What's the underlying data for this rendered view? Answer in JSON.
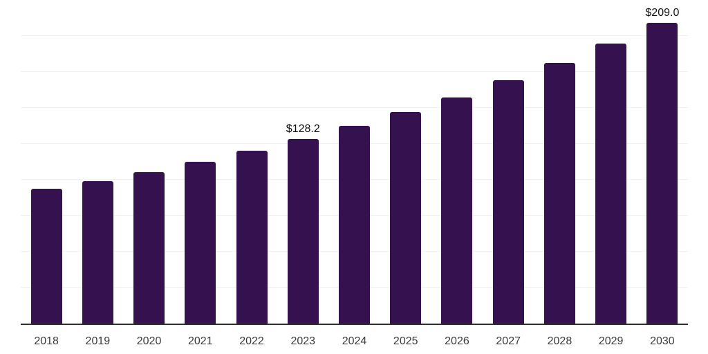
{
  "chart_data": {
    "type": "bar",
    "title": "",
    "xlabel": "",
    "ylabel": "",
    "categories": [
      "2018",
      "2019",
      "2020",
      "2021",
      "2022",
      "2023",
      "2024",
      "2025",
      "2026",
      "2027",
      "2028",
      "2029",
      "2030"
    ],
    "values": [
      93.8,
      99.1,
      105.3,
      112.4,
      120.3,
      128.2,
      137.4,
      147.2,
      157.0,
      169.2,
      181.2,
      194.6,
      209.0
    ],
    "data_labels": [
      {
        "category": "2023",
        "text": "$128.2"
      },
      {
        "category": "2030",
        "text": "$209.0"
      }
    ],
    "ylim": [
      0,
      225
    ],
    "gridline_step": 25,
    "grid": true,
    "legend": false,
    "y_axis_labels_visible": false,
    "colors": {
      "bar": "#36114F",
      "grid": "#F2F2F2",
      "axis": "#2F2F2F",
      "tick_label": "#3A3A3A",
      "data_label": "#111111",
      "background": "#FFFFFF"
    }
  }
}
